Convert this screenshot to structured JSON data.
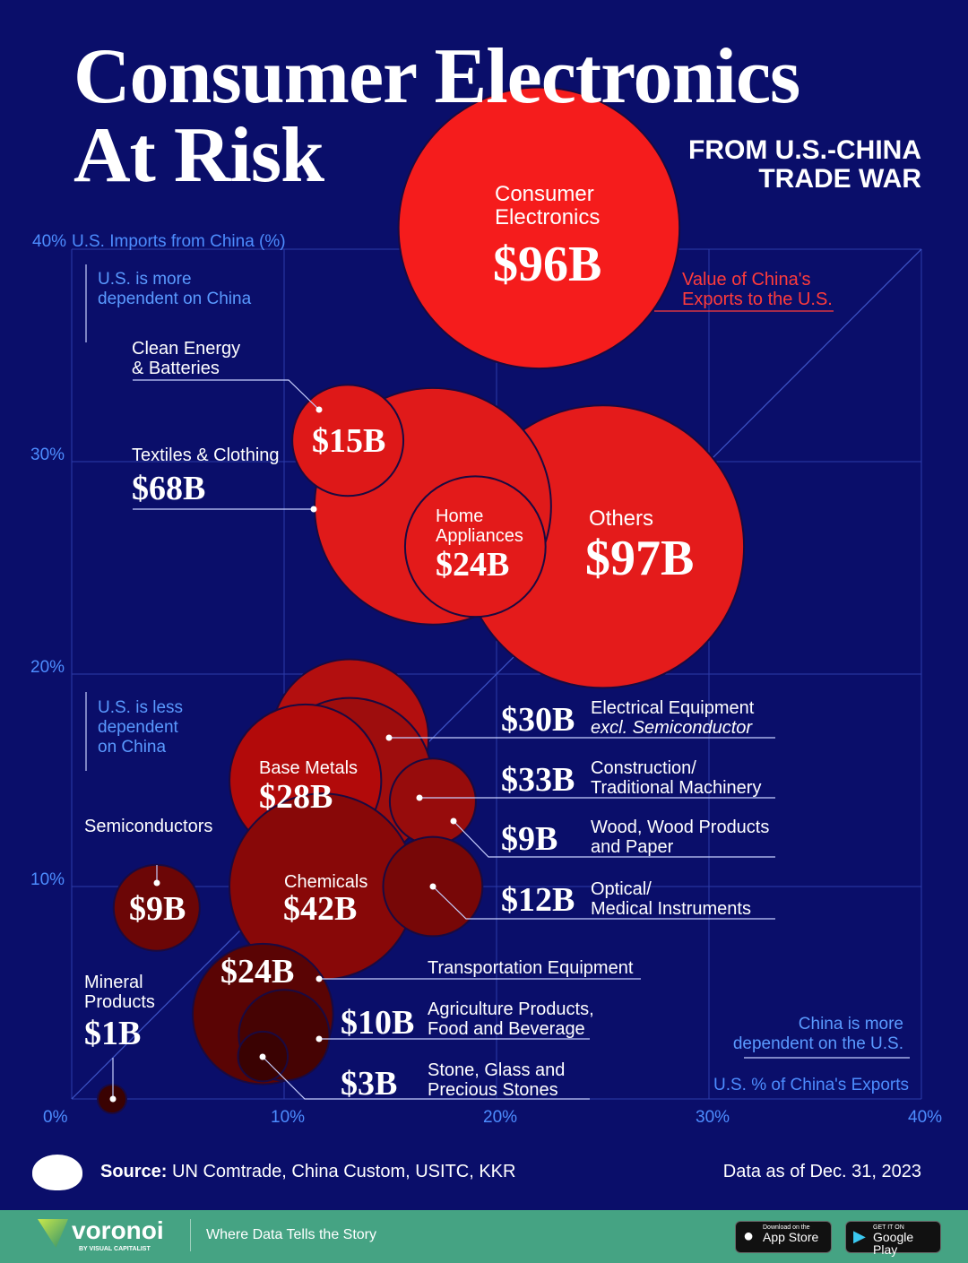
{
  "header": {
    "title_line1": "Consumer Electronics",
    "title_line2": "At Risk",
    "subtitle_line1": "FROM U.S.-CHINA",
    "subtitle_line2": "TRADE WAR"
  },
  "annotations": {
    "more_dependent_us": [
      "U.S. is more",
      "dependent on China"
    ],
    "less_dependent_us": [
      "U.S. is less",
      "dependent",
      "on China"
    ],
    "china_more_dependent": [
      "China is more",
      "dependent on the U.S."
    ],
    "bubble_size_legend": [
      "Value of China's",
      "Exports to the U.S."
    ]
  },
  "chart_data": {
    "type": "scatter",
    "title": "Consumer Electronics At Risk",
    "xlabel": "U.S. % of China's Exports",
    "ylabel": "U.S. Imports from China (%)",
    "xlim": [
      0,
      40
    ],
    "ylim": [
      0,
      40
    ],
    "x_ticks": [
      "0%",
      "10%",
      "20%",
      "30%",
      "40%"
    ],
    "y_ticks": [
      "10%",
      "20%",
      "30%",
      "40%"
    ],
    "grid": true,
    "reference_line": "diagonal y = x",
    "size_encoding": "Value of China's Exports to the U.S. ($B)",
    "series": [
      {
        "name": "Consumer Electronics",
        "label": "$96B",
        "value": 96,
        "x": 22,
        "y": 41,
        "color": "#f51c1c"
      },
      {
        "name": "Others",
        "label": "$97B",
        "value": 97,
        "x": 25,
        "y": 26,
        "color": "#e41b1b"
      },
      {
        "name": "Textiles & Clothing",
        "label": "$68B",
        "value": 68,
        "x": 17,
        "y": 27.9,
        "color": "#e01a1a"
      },
      {
        "name": "Clean Energy & Batteries",
        "label": "$15B",
        "value": 15,
        "x": 13,
        "y": 31,
        "color": "#de1818"
      },
      {
        "name": "Home Appliances",
        "label": "$24B",
        "value": 24,
        "x": 19,
        "y": 26,
        "color": "#e31a1a"
      },
      {
        "name": "Electrical Equipment excl. Semiconductor",
        "label": "$30B",
        "value": 30,
        "x": 13.1,
        "y": 17,
        "color": "#b30f0f"
      },
      {
        "name": "Construction/ Traditional Machinery",
        "label": "$33B",
        "value": 33,
        "x": 13.1,
        "y": 15,
        "color": "#9e0d0d"
      },
      {
        "name": "Wood, Wood Products and Paper",
        "label": "$9B",
        "value": 9,
        "x": 17,
        "y": 14,
        "color": "#970c0c"
      },
      {
        "name": "Base Metals",
        "label": "$28B",
        "value": 28,
        "x": 11,
        "y": 15,
        "color": "#b20a0a"
      },
      {
        "name": "Chemicals",
        "label": "$42B",
        "value": 42,
        "x": 11.8,
        "y": 10,
        "color": "#880808"
      },
      {
        "name": "Optical/ Medical Instruments",
        "label": "$12B",
        "value": 12,
        "x": 17,
        "y": 10,
        "color": "#770707"
      },
      {
        "name": "Semiconductors",
        "label": "$9B",
        "value": 9,
        "x": 4,
        "y": 9,
        "color": "#6c0606"
      },
      {
        "name": "Transportation Equipment",
        "label": "$24B",
        "value": 24,
        "x": 9,
        "y": 4,
        "color": "#5a0404"
      },
      {
        "name": "Agriculture Products, Food and Beverage",
        "label": "$10B",
        "value": 10,
        "x": 10,
        "y": 3,
        "color": "#460303"
      },
      {
        "name": "Stone, Glass and Precious Stones",
        "label": "$3B",
        "value": 3,
        "x": 9,
        "y": 2,
        "color": "#3a0202"
      },
      {
        "name": "Mineral Products",
        "label": "$1B",
        "value": 1,
        "x": 1.9,
        "y": 0,
        "color": "#3a0202"
      }
    ]
  },
  "labels": {
    "consumer_electronics": [
      "Consumer",
      "Electronics"
    ],
    "consumer_electronics_value": "$96B",
    "clean_energy": [
      "Clean Energy",
      "& Batteries"
    ],
    "clean_energy_value": "$15B",
    "textiles": "Textiles & Clothing",
    "textiles_value": "$68B",
    "home_appliances": [
      "Home",
      "Appliances"
    ],
    "home_appliances_value": "$24B",
    "others": "Others",
    "others_value": "$97B",
    "electrical": [
      "Electrical Equipment",
      "excl. Semiconductor"
    ],
    "electrical_value": "$30B",
    "construction": [
      "Construction/",
      "Traditional Machinery"
    ],
    "construction_value": "$33B",
    "wood": [
      "Wood, Wood Products",
      "and Paper"
    ],
    "wood_value": "$9B",
    "optical": [
      "Optical/",
      "Medical Instruments"
    ],
    "optical_value": "$12B",
    "base_metals": "Base Metals",
    "base_metals_value": "$28B",
    "chemicals": "Chemicals",
    "chemicals_value": "$42B",
    "semiconductors": "Semiconductors",
    "semiconductors_value": "$9B",
    "mineral": [
      "Mineral",
      "Products"
    ],
    "mineral_value": "$1B",
    "transportation": "Transportation Equipment",
    "transportation_value": "$24B",
    "agriculture": [
      "Agriculture Products,",
      "Food and Beverage"
    ],
    "agriculture_value": "$10B",
    "stone": [
      "Stone, Glass and",
      "Precious Stones"
    ],
    "stone_value": "$3B"
  },
  "footer": {
    "source_label": "Source:",
    "source_text": "UN Comtrade, China Custom, USITC, KKR",
    "date": "Data as of Dec. 31, 2023",
    "brand": "voronoi",
    "brand_sub": "BY VISUAL CAPITALIST",
    "tagline": "Where Data Tells the Story",
    "appstore_small": "Download on the",
    "appstore": "App Store",
    "play_small": "GET IT ON",
    "play": "Google Play"
  }
}
